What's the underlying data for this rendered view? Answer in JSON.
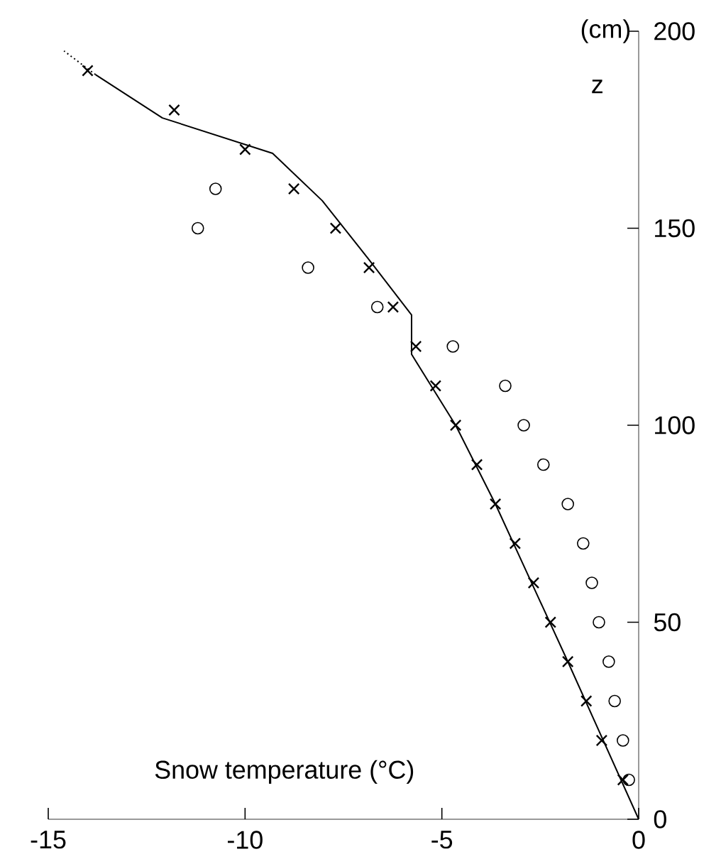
{
  "chart_data": {
    "type": "scatter",
    "xlabel": "Snow temperature (°C)",
    "ylabel": "z",
    "annotations": [
      "(cm)"
    ],
    "xlim": [
      -15,
      0
    ],
    "xticks": [
      -15,
      -10,
      -5,
      0
    ],
    "ylim": [
      0,
      200
    ],
    "yticks": [
      0,
      50,
      100,
      150,
      200
    ],
    "grid": false,
    "series": [
      {
        "type": "line",
        "color": "#000000",
        "line_style": "solid",
        "marker": "none",
        "x": [
          0,
          -1.8,
          -3.64,
          -4.65,
          -5.77,
          -5.77,
          -6.85,
          -8.04,
          -9.3,
          -12.1,
          -13.8
        ],
        "values": [
          0,
          40,
          80,
          100,
          118,
          128,
          142,
          157,
          169,
          178,
          189
        ]
      },
      {
        "type": "line",
        "color": "#000000",
        "line_style": "dotted",
        "marker": "none",
        "x": [
          -13.8,
          -14.6
        ],
        "values": [
          189,
          195
        ]
      },
      {
        "color": "#000000",
        "marker": "cross",
        "x": [
          -0.4,
          -0.94,
          -1.33,
          -1.8,
          -2.24,
          -2.67,
          -3.14,
          -3.64,
          -4.11,
          -4.65,
          -5.16,
          -5.66,
          -6.24,
          -6.85,
          -7.7,
          -8.76,
          -10.0,
          -11.8,
          -14.0
        ],
        "values": [
          10,
          20,
          30,
          40,
          50,
          60,
          70,
          80,
          90,
          100,
          110,
          120,
          130,
          140,
          150,
          160,
          170,
          180,
          190
        ]
      },
      {
        "color": "#000000",
        "marker": "circle",
        "x": [
          -0.25,
          -0.4,
          -0.61,
          -0.76,
          -1.01,
          -1.19,
          -1.41,
          -1.8,
          -2.42,
          -2.92,
          -3.39,
          -4.72,
          -6.64,
          -8.4,
          -11.2,
          -10.75
        ],
        "values": [
          10,
          20,
          30,
          40,
          50,
          60,
          70,
          80,
          90,
          100,
          110,
          120,
          130,
          140,
          150,
          160
        ]
      }
    ]
  }
}
